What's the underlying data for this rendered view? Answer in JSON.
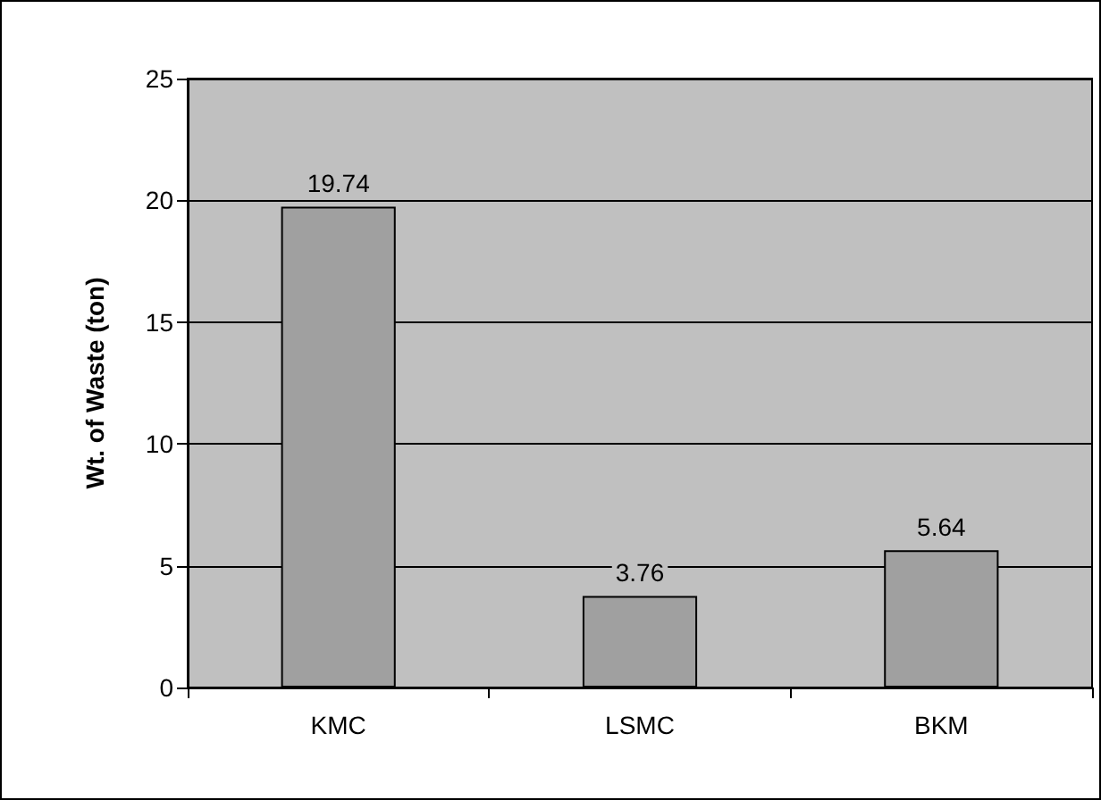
{
  "chart_data": {
    "type": "bar",
    "ylabel": "Wt. of Waste (ton)",
    "categories": [
      "KMC",
      "LSMC",
      "BKM"
    ],
    "values": [
      19.74,
      3.76,
      5.64
    ],
    "color": "#a0a0a0",
    "ylim": [
      0,
      25
    ],
    "yticks": [
      0,
      5,
      10,
      15,
      20,
      25
    ],
    "grid": "y",
    "data_labels": true
  }
}
